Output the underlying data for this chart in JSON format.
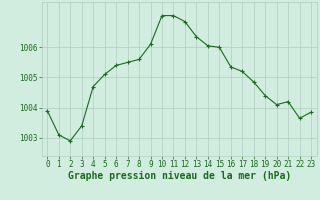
{
  "x": [
    0,
    1,
    2,
    3,
    4,
    5,
    6,
    7,
    8,
    9,
    10,
    11,
    12,
    13,
    14,
    15,
    16,
    17,
    18,
    19,
    20,
    21,
    22,
    23
  ],
  "y": [
    1003.9,
    1003.1,
    1002.9,
    1003.4,
    1004.7,
    1005.1,
    1005.4,
    1005.5,
    1005.6,
    1006.1,
    1007.05,
    1007.05,
    1006.85,
    1006.35,
    1006.05,
    1006.0,
    1005.35,
    1005.2,
    1004.85,
    1004.4,
    1004.1,
    1004.2,
    1003.65,
    1003.85
  ],
  "line_color": "#1a6b1a",
  "marker": "+",
  "bg_color": "#d0ede0",
  "grid_color": "#b0ccbe",
  "xlabel": "Graphe pression niveau de la mer (hPa)",
  "xlabel_fontsize": 7,
  "tick_fontsize": 5.5,
  "yticks": [
    1003,
    1004,
    1005,
    1006
  ],
  "ylim": [
    1002.4,
    1007.5
  ],
  "xlim": [
    -0.5,
    23.5
  ]
}
